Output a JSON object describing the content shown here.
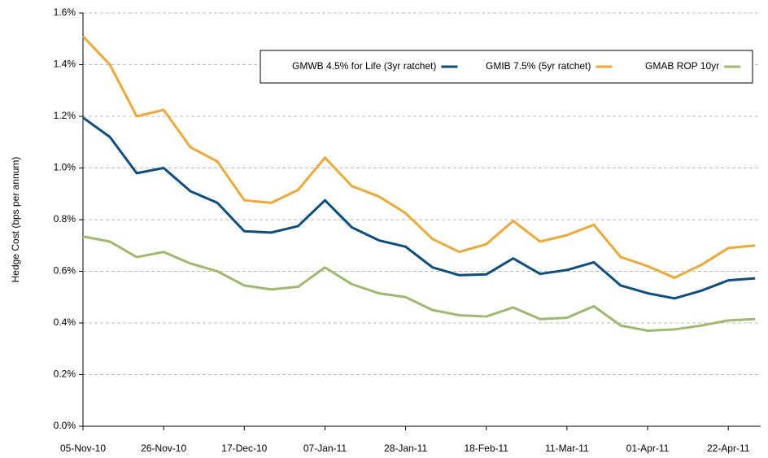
{
  "chart_data": {
    "type": "line",
    "y_label": "Hedge Cost (bps per annum)",
    "categories": [
      "05-Nov-10",
      null,
      null,
      "26-Nov-10",
      null,
      null,
      "17-Dec-10",
      null,
      null,
      "07-Jan-11",
      null,
      null,
      "28-Jan-11",
      null,
      null,
      "18-Feb-11",
      null,
      null,
      "11-Mar-11",
      null,
      null,
      "01-Apr-11",
      null,
      null,
      "22-Apr-11",
      null
    ],
    "series": [
      {
        "name": "GMWB 4.5% for Life (3yr ratchet)",
        "color": "#0b4f82",
        "values": [
          1.195,
          1.12,
          0.98,
          1.0,
          0.91,
          0.865,
          0.755,
          0.75,
          0.775,
          0.875,
          0.77,
          0.72,
          0.695,
          0.615,
          0.585,
          0.588,
          0.65,
          0.59,
          0.605,
          0.635,
          0.545,
          0.515,
          0.495,
          0.525,
          0.565,
          0.573
        ]
      },
      {
        "name": "GMIB 7.5% (5yr ratchet)",
        "color": "#f0a830",
        "values": [
          1.51,
          1.4,
          1.2,
          1.225,
          1.08,
          1.025,
          0.875,
          0.865,
          0.915,
          1.04,
          0.93,
          0.89,
          0.825,
          0.725,
          0.675,
          0.705,
          0.795,
          0.715,
          0.74,
          0.78,
          0.655,
          0.62,
          0.575,
          0.625,
          0.69,
          0.7
        ]
      },
      {
        "name": "GMAB ROP 10yr",
        "color": "#9bbb6a",
        "values": [
          0.735,
          0.715,
          0.655,
          0.675,
          0.63,
          0.6,
          0.545,
          0.53,
          0.54,
          0.615,
          0.55,
          0.515,
          0.5,
          0.45,
          0.43,
          0.425,
          0.46,
          0.415,
          0.42,
          0.465,
          0.39,
          0.37,
          0.375,
          0.39,
          0.41,
          0.415
        ]
      }
    ],
    "ylim": [
      0,
      1.6
    ],
    "yticks": [
      {
        "value": 0,
        "label": "0.0%"
      },
      {
        "value": 0.2,
        "label": "0.2%"
      },
      {
        "value": 0.4,
        "label": "0.4%"
      },
      {
        "value": 0.6,
        "label": "0.6%"
      },
      {
        "value": 0.8,
        "label": "0.8%"
      },
      {
        "value": 1.0,
        "label": "1.0%"
      },
      {
        "value": 1.2,
        "label": "1.2%"
      },
      {
        "value": 1.4,
        "label": "1.4%"
      },
      {
        "value": 1.6,
        "label": "1.6%"
      }
    ],
    "grid": true
  }
}
